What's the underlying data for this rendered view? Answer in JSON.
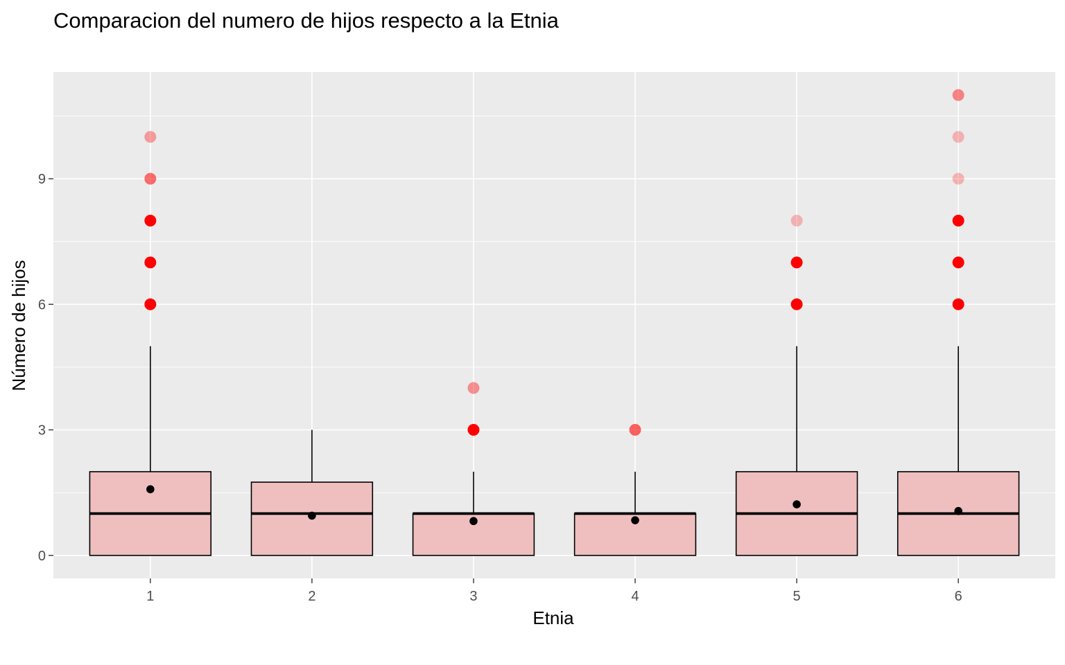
{
  "chart_data": {
    "type": "boxplot",
    "title": "Comparacion del numero de hijos respecto a la Etnia",
    "xlabel": "Etnia",
    "ylabel": "Número de hijos",
    "categories": [
      "1",
      "2",
      "3",
      "4",
      "5",
      "6"
    ],
    "y_ticks": [
      0,
      3,
      6,
      9
    ],
    "y_tick_labels": [
      "0",
      "3",
      "6",
      "9"
    ],
    "ylim": [
      -0.55,
      11.55
    ],
    "grid": true,
    "legend": "none",
    "boxes": [
      {
        "category": "1",
        "q1": 0,
        "median": 1,
        "q3": 2,
        "whisker_low": 0,
        "whisker_high": 5,
        "mean": 1.58,
        "outliers": [
          {
            "y": 6,
            "alpha": 1.0
          },
          {
            "y": 7,
            "alpha": 1.0
          },
          {
            "y": 8,
            "alpha": 1.0
          },
          {
            "y": 9,
            "alpha": 0.55
          },
          {
            "y": 10,
            "alpha": 0.35
          }
        ]
      },
      {
        "category": "2",
        "q1": 0,
        "median": 1,
        "q3": 1.75,
        "whisker_low": 0,
        "whisker_high": 3,
        "mean": 0.95,
        "outliers": []
      },
      {
        "category": "3",
        "q1": 0,
        "median": 1,
        "q3": 1,
        "whisker_low": 0,
        "whisker_high": 2,
        "mean": 0.82,
        "outliers": [
          {
            "y": 3,
            "alpha": 1.0
          },
          {
            "y": 4,
            "alpha": 0.4
          }
        ]
      },
      {
        "category": "4",
        "q1": 0,
        "median": 1,
        "q3": 1,
        "whisker_low": 0,
        "whisker_high": 2,
        "mean": 0.84,
        "outliers": [
          {
            "y": 3,
            "alpha": 0.6
          }
        ]
      },
      {
        "category": "5",
        "q1": 0,
        "median": 1,
        "q3": 2,
        "whisker_low": 0,
        "whisker_high": 5,
        "mean": 1.22,
        "outliers": [
          {
            "y": 6,
            "alpha": 1.0
          },
          {
            "y": 7,
            "alpha": 1.0
          },
          {
            "y": 8,
            "alpha": 0.25
          }
        ]
      },
      {
        "category": "6",
        "q1": 0,
        "median": 1,
        "q3": 2,
        "whisker_low": 0,
        "whisker_high": 5,
        "mean": 1.06,
        "outliers": [
          {
            "y": 6,
            "alpha": 1.0
          },
          {
            "y": 7,
            "alpha": 1.0
          },
          {
            "y": 8,
            "alpha": 1.0
          },
          {
            "y": 9,
            "alpha": 0.25
          },
          {
            "y": 10,
            "alpha": 0.25
          },
          {
            "y": 11,
            "alpha": 0.45
          }
        ]
      }
    ],
    "colors": {
      "panel_background": "#ebebeb",
      "grid_major": "#ffffff",
      "box_fill": "#efbfbf",
      "box_outline": "#000000",
      "outlier": "#ff0000",
      "mean_point": "#000000",
      "tick_text": "#4d4d4d",
      "tick_mark": "#333333"
    }
  }
}
